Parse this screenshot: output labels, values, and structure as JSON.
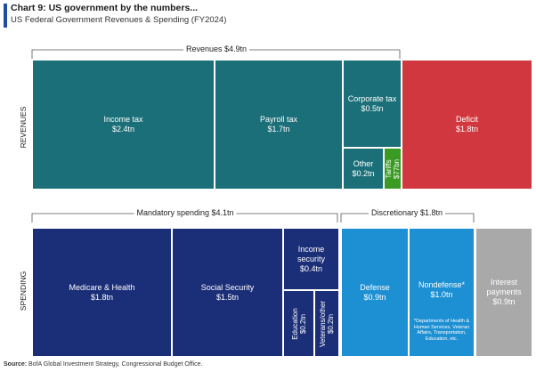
{
  "title": "Chart 9: US government by the numbers...",
  "subtitle": "US Federal Government Revenues & Spending (FY2024)",
  "row_labels": {
    "revenues": "REVENUES",
    "spending": "SPENDING"
  },
  "braces": {
    "revenues": "Revenues $4.9tn",
    "mandatory": "Mandatory spending $4.1tn",
    "discretionary": "Discretionary $1.8tn"
  },
  "source_label": "Source:",
  "source_text": "BofA Global Investment Strategy, Congressional Budget Office.",
  "colors": {
    "revenue": "#1b6f78",
    "tariffs": "#3a9a22",
    "deficit": "#d1373e",
    "mandatory": "#1b2e78",
    "discretionary": "#1d8fd3",
    "interest": "#a9a9a9"
  },
  "chart_data": {
    "type": "treemap",
    "unit": "$tn",
    "revenues": [
      {
        "name": "Income tax",
        "value_label": "$2.4tn",
        "value": 2.4
      },
      {
        "name": "Payroll tax",
        "value_label": "$1.7tn",
        "value": 1.7
      },
      {
        "name": "Corporate tax",
        "value_label": "$0.5tn",
        "value": 0.5
      },
      {
        "name": "Other",
        "value_label": "$0.2tn",
        "value": 0.2
      },
      {
        "name": "Tariffs",
        "value_label": "$77bn",
        "value": 0.077
      },
      {
        "name": "Deficit",
        "value_label": "$1.8tn",
        "value": 1.8
      }
    ],
    "spending": [
      {
        "name": "Medicare & Health",
        "value_label": "$1.8tn",
        "value": 1.8
      },
      {
        "name": "Social Security",
        "value_label": "$1.5tn",
        "value": 1.5
      },
      {
        "name": "Income security",
        "value_label": "$0.4tn",
        "value": 0.4
      },
      {
        "name": "Education",
        "value_label": "$0.2tn",
        "value": 0.2
      },
      {
        "name": "Veterans/other",
        "value_label": "$0.2tn",
        "value": 0.2
      },
      {
        "name": "Defense",
        "value_label": "$0.9tn",
        "value": 0.9
      },
      {
        "name": "Nondefense*",
        "value_label": "$1.0tn",
        "value": 1.0
      },
      {
        "name": "Interest payments",
        "value_label": "$0.9tn",
        "value": 0.9
      }
    ],
    "footnote": "*Departments of Health & Human Services, Veteran Affairs, Transportation, Education, etc."
  }
}
